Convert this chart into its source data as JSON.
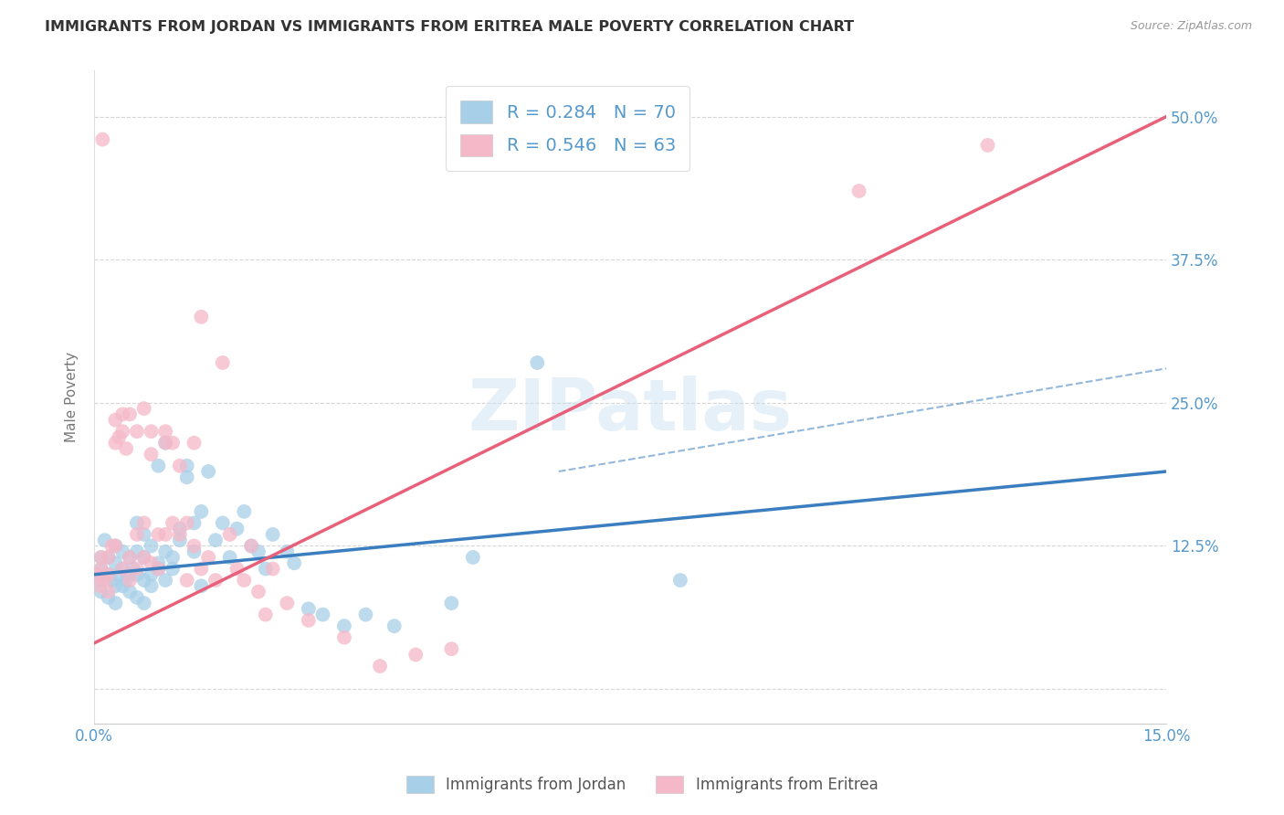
{
  "title": "IMMIGRANTS FROM JORDAN VS IMMIGRANTS FROM ERITREA MALE POVERTY CORRELATION CHART",
  "source": "Source: ZipAtlas.com",
  "ylabel": "Male Poverty",
  "xlim": [
    0.0,
    0.15
  ],
  "ylim": [
    -0.03,
    0.54
  ],
  "jordan_R": 0.284,
  "jordan_N": 70,
  "eritrea_R": 0.546,
  "eritrea_N": 63,
  "jordan_color": "#a8cfe8",
  "eritrea_color": "#f5b8c8",
  "jordan_line_color": "#3a7ebf",
  "eritrea_line_color": "#e8607a",
  "jordan_line": [
    0.0,
    0.1,
    0.15,
    0.19
  ],
  "eritrea_line": [
    0.0,
    0.04,
    0.15,
    0.5
  ],
  "dash_line": [
    0.065,
    0.19,
    0.15,
    0.28
  ],
  "bottom_legend_jordan": "Immigrants from Jordan",
  "bottom_legend_eritrea": "Immigrants from Eritrea",
  "watermark": "ZIPatlas",
  "background_color": "#ffffff",
  "grid_color": "#cccccc",
  "title_color": "#333333",
  "axis_color": "#5599cc",
  "jordan_points": [
    [
      0.0005,
      0.095
    ],
    [
      0.001,
      0.115
    ],
    [
      0.001,
      0.085
    ],
    [
      0.001,
      0.105
    ],
    [
      0.0015,
      0.13
    ],
    [
      0.002,
      0.1
    ],
    [
      0.002,
      0.08
    ],
    [
      0.002,
      0.115
    ],
    [
      0.0025,
      0.095
    ],
    [
      0.003,
      0.11
    ],
    [
      0.003,
      0.125
    ],
    [
      0.003,
      0.09
    ],
    [
      0.003,
      0.075
    ],
    [
      0.0035,
      0.1
    ],
    [
      0.004,
      0.105
    ],
    [
      0.004,
      0.12
    ],
    [
      0.004,
      0.09
    ],
    [
      0.0045,
      0.095
    ],
    [
      0.005,
      0.1
    ],
    [
      0.005,
      0.115
    ],
    [
      0.005,
      0.085
    ],
    [
      0.0055,
      0.105
    ],
    [
      0.006,
      0.1
    ],
    [
      0.006,
      0.12
    ],
    [
      0.006,
      0.08
    ],
    [
      0.006,
      0.145
    ],
    [
      0.007,
      0.095
    ],
    [
      0.007,
      0.115
    ],
    [
      0.007,
      0.075
    ],
    [
      0.007,
      0.135
    ],
    [
      0.008,
      0.1
    ],
    [
      0.008,
      0.09
    ],
    [
      0.008,
      0.125
    ],
    [
      0.009,
      0.195
    ],
    [
      0.009,
      0.105
    ],
    [
      0.009,
      0.11
    ],
    [
      0.01,
      0.12
    ],
    [
      0.01,
      0.095
    ],
    [
      0.01,
      0.215
    ],
    [
      0.011,
      0.105
    ],
    [
      0.011,
      0.115
    ],
    [
      0.012,
      0.14
    ],
    [
      0.012,
      0.13
    ],
    [
      0.013,
      0.185
    ],
    [
      0.013,
      0.195
    ],
    [
      0.014,
      0.145
    ],
    [
      0.014,
      0.12
    ],
    [
      0.015,
      0.155
    ],
    [
      0.015,
      0.09
    ],
    [
      0.016,
      0.19
    ],
    [
      0.017,
      0.13
    ],
    [
      0.018,
      0.145
    ],
    [
      0.019,
      0.115
    ],
    [
      0.02,
      0.14
    ],
    [
      0.021,
      0.155
    ],
    [
      0.022,
      0.125
    ],
    [
      0.023,
      0.12
    ],
    [
      0.024,
      0.105
    ],
    [
      0.025,
      0.135
    ],
    [
      0.027,
      0.12
    ],
    [
      0.028,
      0.11
    ],
    [
      0.03,
      0.07
    ],
    [
      0.032,
      0.065
    ],
    [
      0.035,
      0.055
    ],
    [
      0.038,
      0.065
    ],
    [
      0.042,
      0.055
    ],
    [
      0.05,
      0.075
    ],
    [
      0.053,
      0.115
    ],
    [
      0.062,
      0.285
    ],
    [
      0.082,
      0.095
    ]
  ],
  "eritrea_points": [
    [
      0.0005,
      0.1
    ],
    [
      0.0008,
      0.09
    ],
    [
      0.001,
      0.115
    ],
    [
      0.001,
      0.105
    ],
    [
      0.0012,
      0.48
    ],
    [
      0.0015,
      0.095
    ],
    [
      0.002,
      0.1
    ],
    [
      0.002,
      0.115
    ],
    [
      0.002,
      0.085
    ],
    [
      0.0025,
      0.125
    ],
    [
      0.003,
      0.235
    ],
    [
      0.003,
      0.215
    ],
    [
      0.003,
      0.125
    ],
    [
      0.0035,
      0.22
    ],
    [
      0.004,
      0.225
    ],
    [
      0.004,
      0.105
    ],
    [
      0.004,
      0.24
    ],
    [
      0.0045,
      0.21
    ],
    [
      0.005,
      0.24
    ],
    [
      0.005,
      0.095
    ],
    [
      0.005,
      0.115
    ],
    [
      0.006,
      0.225
    ],
    [
      0.006,
      0.135
    ],
    [
      0.006,
      0.105
    ],
    [
      0.007,
      0.245
    ],
    [
      0.007,
      0.115
    ],
    [
      0.007,
      0.145
    ],
    [
      0.008,
      0.205
    ],
    [
      0.008,
      0.225
    ],
    [
      0.008,
      0.11
    ],
    [
      0.009,
      0.135
    ],
    [
      0.009,
      0.105
    ],
    [
      0.01,
      0.225
    ],
    [
      0.01,
      0.215
    ],
    [
      0.01,
      0.135
    ],
    [
      0.011,
      0.145
    ],
    [
      0.011,
      0.215
    ],
    [
      0.012,
      0.195
    ],
    [
      0.012,
      0.135
    ],
    [
      0.013,
      0.145
    ],
    [
      0.013,
      0.095
    ],
    [
      0.014,
      0.125
    ],
    [
      0.014,
      0.215
    ],
    [
      0.015,
      0.325
    ],
    [
      0.015,
      0.105
    ],
    [
      0.016,
      0.115
    ],
    [
      0.017,
      0.095
    ],
    [
      0.018,
      0.285
    ],
    [
      0.019,
      0.135
    ],
    [
      0.02,
      0.105
    ],
    [
      0.021,
      0.095
    ],
    [
      0.022,
      0.125
    ],
    [
      0.023,
      0.085
    ],
    [
      0.024,
      0.065
    ],
    [
      0.025,
      0.105
    ],
    [
      0.027,
      0.075
    ],
    [
      0.03,
      0.06
    ],
    [
      0.035,
      0.045
    ],
    [
      0.04,
      0.02
    ],
    [
      0.045,
      0.03
    ],
    [
      0.05,
      0.035
    ],
    [
      0.107,
      0.435
    ],
    [
      0.125,
      0.475
    ]
  ]
}
